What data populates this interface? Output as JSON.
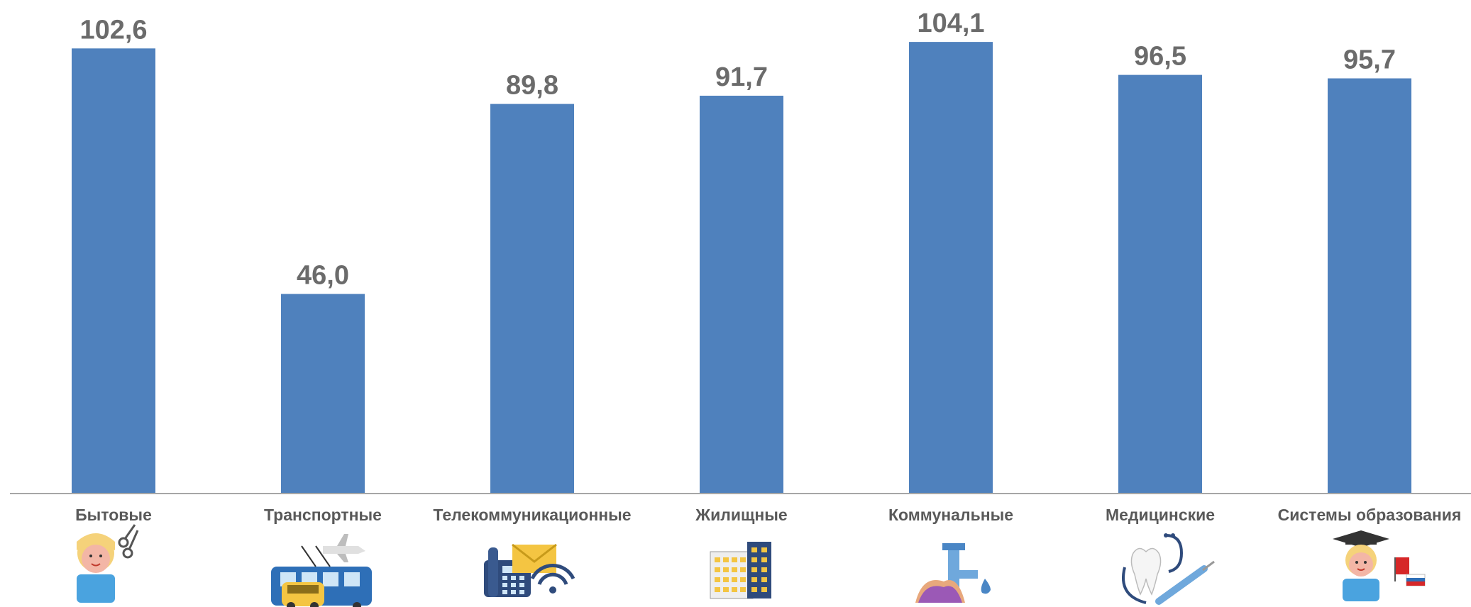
{
  "chart_data": {
    "type": "bar",
    "categories": [
      "Бытовые",
      "Транспортные",
      "Телекоммуникационные",
      "Жилищные",
      "Коммунальные",
      "Медицинские",
      "Системы образования"
    ],
    "values": [
      102.6,
      46.0,
      89.8,
      91.7,
      104.1,
      96.5,
      95.7
    ],
    "value_labels": [
      "102,6",
      "46,0",
      "89,8",
      "91,7",
      "104,1",
      "96,5",
      "95,7"
    ],
    "bar_color": "#4f81bd",
    "label_color": "#6b6b6b",
    "axis_color": "#a6a6a6",
    "grid": false,
    "legend": "none",
    "ylim": [
      0,
      110
    ],
    "icons": [
      "hairdresser-icon",
      "transport-icon",
      "telecom-icon",
      "building-icon",
      "utilities-icon",
      "medical-icon",
      "education-icon"
    ]
  }
}
